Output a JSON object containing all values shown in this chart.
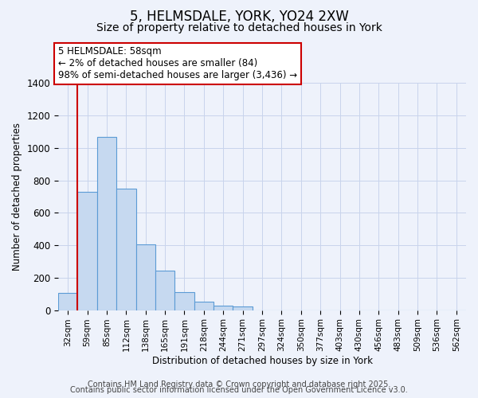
{
  "title": "5, HELMSDALE, YORK, YO24 2XW",
  "subtitle": "Size of property relative to detached houses in York",
  "xlabel": "Distribution of detached houses by size in York",
  "ylabel": "Number of detached properties",
  "bar_color": "#c6d9f0",
  "bar_edge_color": "#5b9bd5",
  "background_color": "#eef2fb",
  "grid_color": "#c8d4ec",
  "categories": [
    "32sqm",
    "59sqm",
    "85sqm",
    "112sqm",
    "138sqm",
    "165sqm",
    "191sqm",
    "218sqm",
    "244sqm",
    "271sqm",
    "297sqm",
    "324sqm",
    "350sqm",
    "377sqm",
    "403sqm",
    "430sqm",
    "456sqm",
    "483sqm",
    "509sqm",
    "536sqm",
    "562sqm"
  ],
  "values": [
    107,
    730,
    1070,
    750,
    405,
    245,
    113,
    52,
    28,
    22,
    0,
    0,
    0,
    0,
    0,
    0,
    0,
    0,
    0,
    0,
    0
  ],
  "vline_x_index": 1,
  "vline_color": "#cc0000",
  "annotation_title": "5 HELMSDALE: 58sqm",
  "annotation_line1": "← 2% of detached houses are smaller (84)",
  "annotation_line2": "98% of semi-detached houses are larger (3,436) →",
  "annotation_box_edge": "#cc0000",
  "annotation_box_face": "#ffffff",
  "ylim": [
    0,
    1400
  ],
  "footer1": "Contains HM Land Registry data © Crown copyright and database right 2025.",
  "footer2": "Contains public sector information licensed under the Open Government Licence v3.0.",
  "title_fontsize": 12,
  "subtitle_fontsize": 10,
  "footer_fontsize": 7
}
